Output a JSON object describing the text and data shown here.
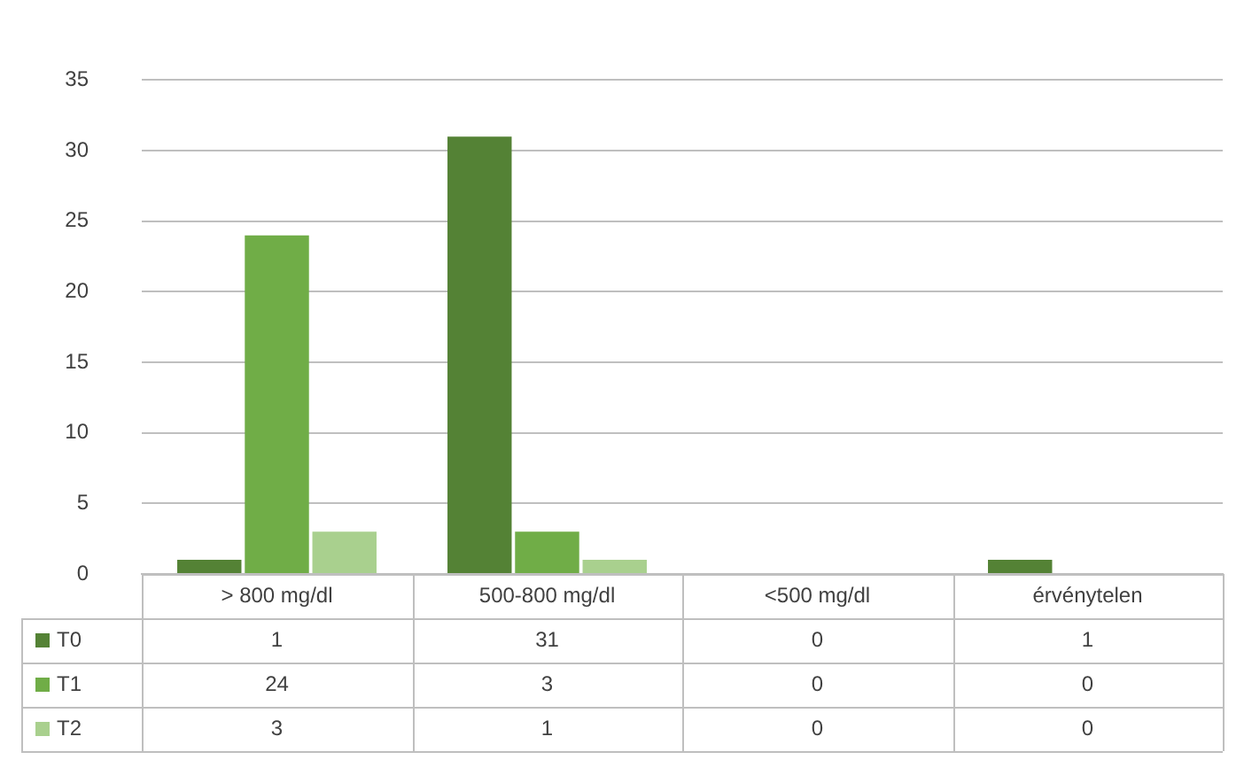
{
  "chart_data": {
    "type": "bar",
    "categories": [
      "> 800 mg/dl",
      "500-800 mg/dl",
      "<500 mg/dl",
      "érvénytelen"
    ],
    "series": [
      {
        "name": "T0",
        "color": "#548235",
        "values": [
          1,
          31,
          0,
          1
        ]
      },
      {
        "name": "T1",
        "color": "#70ad47",
        "values": [
          24,
          3,
          0,
          0
        ]
      },
      {
        "name": "T2",
        "color": "#a9d08e",
        "values": [
          3,
          1,
          0,
          0
        ]
      }
    ],
    "ylim": [
      0,
      35
    ],
    "yticks": [
      0,
      5,
      10,
      15,
      20,
      25,
      30,
      35
    ],
    "grid": "y",
    "legend": "bottom",
    "data_labels": true
  }
}
